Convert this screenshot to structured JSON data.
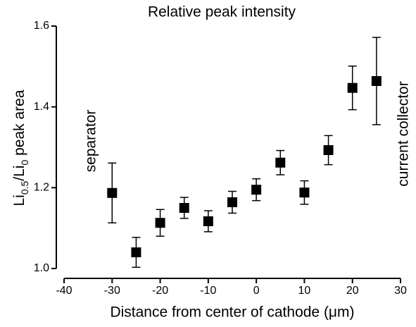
{
  "chart_data": {
    "type": "scatter",
    "title": "Relative peak intensity",
    "xlabel": "Distance from center of cathode (μm)",
    "ylabel": [
      {
        "text": "Li"
      },
      {
        "text": "0.5",
        "sub": true
      },
      {
        "text": "/Li"
      },
      {
        "text": "0",
        "sub": true
      },
      {
        "text": " peak area"
      }
    ],
    "annotations": [
      "separator",
      "current collector"
    ],
    "x": [
      -30,
      -25,
      -20,
      -15,
      -10,
      -5,
      0,
      5,
      10,
      15,
      20,
      25
    ],
    "series": [
      {
        "color": "#000000",
        "values": [
          1.187,
          1.04,
          1.113,
          1.15,
          1.117,
          1.164,
          1.195,
          1.262,
          1.188,
          1.293,
          1.447,
          1.464
        ],
        "errors": [
          0.074,
          0.037,
          0.033,
          0.026,
          0.026,
          0.027,
          0.027,
          0.03,
          0.029,
          0.036,
          0.054,
          0.108
        ]
      }
    ],
    "xlim": [
      -40,
      30
    ],
    "xticks": [
      -40,
      -30,
      -20,
      -10,
      0,
      10,
      20,
      30
    ],
    "ylim": [
      1.0,
      1.6
    ],
    "yticks": [
      {
        "value": 1.0,
        "label": "1.0"
      },
      {
        "value": 1.2,
        "label": "1.2"
      },
      {
        "value": 1.4,
        "label": "1.4"
      },
      {
        "value": 1.6,
        "label": "1.6"
      }
    ]
  }
}
